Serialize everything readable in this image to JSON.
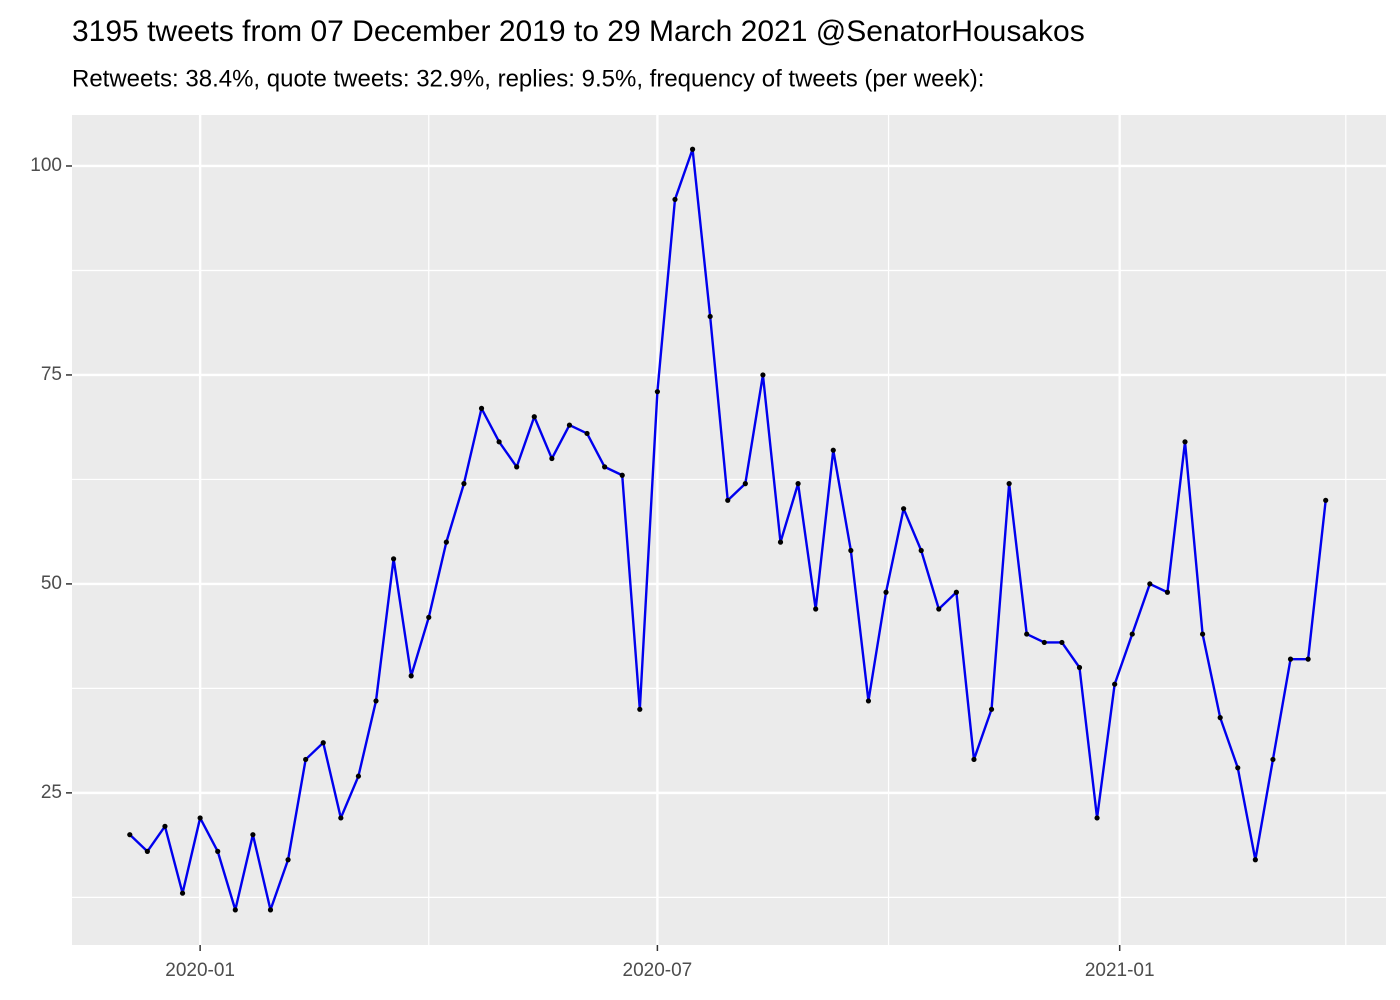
{
  "chart_data": {
    "type": "line",
    "title": "3195 tweets from 07 December 2019 to 29 March 2021 @SenatorHousakos",
    "subtitle": "Retweets: 38.4%, quote tweets: 32.9%, replies: 9.5%, frequency of tweets (per week):",
    "x": [
      "2019-12-04",
      "2019-12-11",
      "2019-12-18",
      "2019-12-25",
      "2020-01-01",
      "2020-01-08",
      "2020-01-15",
      "2020-01-22",
      "2020-01-29",
      "2020-02-05",
      "2020-02-12",
      "2020-02-19",
      "2020-02-26",
      "2020-03-04",
      "2020-03-11",
      "2020-03-18",
      "2020-03-25",
      "2020-04-01",
      "2020-04-08",
      "2020-04-15",
      "2020-04-22",
      "2020-04-29",
      "2020-05-06",
      "2020-05-13",
      "2020-05-20",
      "2020-05-27",
      "2020-06-03",
      "2020-06-10",
      "2020-06-17",
      "2020-06-24",
      "2020-07-01",
      "2020-07-08",
      "2020-07-15",
      "2020-07-22",
      "2020-07-29",
      "2020-08-05",
      "2020-08-12",
      "2020-08-19",
      "2020-08-26",
      "2020-09-02",
      "2020-09-09",
      "2020-09-16",
      "2020-09-23",
      "2020-09-30",
      "2020-10-07",
      "2020-10-14",
      "2020-10-21",
      "2020-10-28",
      "2020-11-04",
      "2020-11-11",
      "2020-11-18",
      "2020-11-25",
      "2020-12-02",
      "2020-12-09",
      "2020-12-16",
      "2020-12-23",
      "2020-12-30",
      "2021-01-06",
      "2021-01-13",
      "2021-01-20",
      "2021-01-27",
      "2021-02-03",
      "2021-02-10",
      "2021-02-17",
      "2021-02-24",
      "2021-03-03",
      "2021-03-10",
      "2021-03-17",
      "2021-03-24"
    ],
    "values": [
      20,
      18,
      21,
      13,
      22,
      18,
      11,
      20,
      11,
      17,
      29,
      31,
      22,
      27,
      36,
      53,
      39,
      46,
      55,
      62,
      71,
      67,
      64,
      70,
      65,
      69,
      68,
      64,
      63,
      35,
      73,
      96,
      102,
      82,
      60,
      62,
      75,
      55,
      62,
      47,
      66,
      54,
      36,
      49,
      59,
      54,
      47,
      49,
      29,
      35,
      62,
      44,
      43,
      43,
      40,
      22,
      38,
      44,
      50,
      49,
      67,
      44,
      34,
      28,
      17,
      29,
      41,
      41,
      60
    ],
    "color": "#0000ee",
    "point_color": "#000000",
    "xlim": [
      "2019-11-11",
      "2021-04-17"
    ],
    "xticks": [
      {
        "value": "2020-01-01",
        "label": "2020-01"
      },
      {
        "value": "2020-07-01",
        "label": "2020-07"
      },
      {
        "value": "2021-01-01",
        "label": "2021-01"
      }
    ],
    "xminor": [
      "2020-04-01",
      "2020-10-01",
      "2021-04-01"
    ],
    "ylim": [
      6.8,
      106.1
    ],
    "yticks": [
      25,
      50,
      75,
      100
    ],
    "yminor": [
      12.5,
      37.5,
      62.5,
      87.5
    ],
    "grid": true
  }
}
